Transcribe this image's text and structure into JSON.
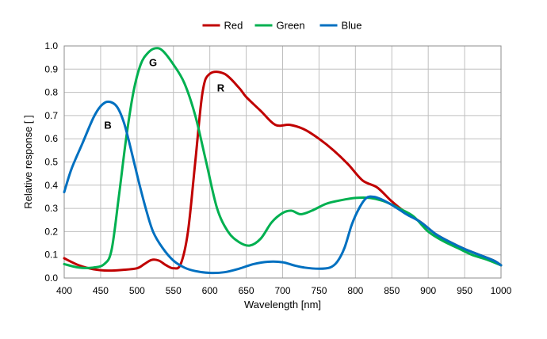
{
  "chart_data": {
    "type": "line",
    "title": "",
    "xlabel": "Wavelength [nm]",
    "ylabel": "Relative response [ ]",
    "xlim": [
      400,
      1000
    ],
    "ylim": [
      0,
      1.0
    ],
    "x_ticks": [
      400,
      450,
      500,
      550,
      600,
      650,
      700,
      750,
      800,
      850,
      900,
      950,
      1000
    ],
    "y_ticks": [
      0.0,
      0.1,
      0.2,
      0.3,
      0.4,
      0.5,
      0.6,
      0.7,
      0.8,
      0.9,
      1.0
    ],
    "x_tick_labels": [
      "400",
      "450",
      "500",
      "550",
      "600",
      "650",
      "700",
      "750",
      "800",
      "850",
      "900",
      "950",
      "1000"
    ],
    "y_tick_labels": [
      "0.0",
      "0.1",
      "0.2",
      "0.3",
      "0.4",
      "0.5",
      "0.6",
      "0.7",
      "0.8",
      "0.9",
      "1.0"
    ],
    "grid": true,
    "legend_position": "top-center",
    "series": [
      {
        "name": "Red",
        "color": "#c00000",
        "points": [
          [
            400,
            0.085
          ],
          [
            420,
            0.055
          ],
          [
            440,
            0.038
          ],
          [
            460,
            0.032
          ],
          [
            480,
            0.035
          ],
          [
            500,
            0.042
          ],
          [
            510,
            0.06
          ],
          [
            520,
            0.078
          ],
          [
            530,
            0.075
          ],
          [
            540,
            0.055
          ],
          [
            550,
            0.042
          ],
          [
            560,
            0.06
          ],
          [
            570,
            0.2
          ],
          [
            580,
            0.5
          ],
          [
            590,
            0.8
          ],
          [
            600,
            0.88
          ],
          [
            620,
            0.88
          ],
          [
            640,
            0.82
          ],
          [
            650,
            0.78
          ],
          [
            670,
            0.72
          ],
          [
            690,
            0.66
          ],
          [
            710,
            0.66
          ],
          [
            730,
            0.64
          ],
          [
            750,
            0.6
          ],
          [
            770,
            0.55
          ],
          [
            790,
            0.49
          ],
          [
            810,
            0.42
          ],
          [
            830,
            0.39
          ],
          [
            850,
            0.33
          ],
          [
            870,
            0.28
          ],
          [
            890,
            0.24
          ],
          [
            910,
            0.19
          ],
          [
            930,
            0.155
          ],
          [
            950,
            0.125
          ],
          [
            970,
            0.1
          ],
          [
            990,
            0.075
          ],
          [
            1000,
            0.055
          ]
        ]
      },
      {
        "name": "Green",
        "color": "#00b050",
        "points": [
          [
            400,
            0.06
          ],
          [
            420,
            0.045
          ],
          [
            440,
            0.045
          ],
          [
            455,
            0.06
          ],
          [
            465,
            0.12
          ],
          [
            475,
            0.35
          ],
          [
            485,
            0.6
          ],
          [
            495,
            0.8
          ],
          [
            505,
            0.92
          ],
          [
            515,
            0.97
          ],
          [
            525,
            0.99
          ],
          [
            535,
            0.98
          ],
          [
            550,
            0.92
          ],
          [
            565,
            0.84
          ],
          [
            580,
            0.7
          ],
          [
            595,
            0.5
          ],
          [
            610,
            0.3
          ],
          [
            625,
            0.2
          ],
          [
            640,
            0.155
          ],
          [
            655,
            0.14
          ],
          [
            670,
            0.17
          ],
          [
            685,
            0.24
          ],
          [
            700,
            0.28
          ],
          [
            712,
            0.29
          ],
          [
            725,
            0.275
          ],
          [
            740,
            0.29
          ],
          [
            760,
            0.32
          ],
          [
            780,
            0.335
          ],
          [
            800,
            0.345
          ],
          [
            820,
            0.345
          ],
          [
            840,
            0.33
          ],
          [
            860,
            0.3
          ],
          [
            880,
            0.265
          ],
          [
            900,
            0.2
          ],
          [
            920,
            0.16
          ],
          [
            940,
            0.13
          ],
          [
            960,
            0.1
          ],
          [
            980,
            0.08
          ],
          [
            1000,
            0.055
          ]
        ]
      },
      {
        "name": "Blue",
        "color": "#0070c0",
        "points": [
          [
            400,
            0.37
          ],
          [
            410,
            0.47
          ],
          [
            425,
            0.58
          ],
          [
            440,
            0.69
          ],
          [
            450,
            0.74
          ],
          [
            460,
            0.76
          ],
          [
            472,
            0.74
          ],
          [
            482,
            0.67
          ],
          [
            492,
            0.55
          ],
          [
            502,
            0.42
          ],
          [
            512,
            0.3
          ],
          [
            522,
            0.2
          ],
          [
            535,
            0.13
          ],
          [
            550,
            0.075
          ],
          [
            565,
            0.045
          ],
          [
            580,
            0.03
          ],
          [
            600,
            0.022
          ],
          [
            620,
            0.025
          ],
          [
            640,
            0.04
          ],
          [
            660,
            0.06
          ],
          [
            680,
            0.07
          ],
          [
            700,
            0.068
          ],
          [
            715,
            0.055
          ],
          [
            730,
            0.045
          ],
          [
            750,
            0.04
          ],
          [
            765,
            0.045
          ],
          [
            775,
            0.07
          ],
          [
            785,
            0.13
          ],
          [
            795,
            0.23
          ],
          [
            805,
            0.3
          ],
          [
            815,
            0.345
          ],
          [
            825,
            0.35
          ],
          [
            835,
            0.34
          ],
          [
            850,
            0.315
          ],
          [
            870,
            0.275
          ],
          [
            890,
            0.24
          ],
          [
            910,
            0.19
          ],
          [
            930,
            0.155
          ],
          [
            950,
            0.125
          ],
          [
            970,
            0.1
          ],
          [
            990,
            0.075
          ],
          [
            1000,
            0.055
          ]
        ]
      }
    ],
    "annotations": [
      {
        "text": "B",
        "x": 460,
        "y": 0.66
      },
      {
        "text": "G",
        "x": 522,
        "y": 0.93
      },
      {
        "text": "R",
        "x": 615,
        "y": 0.82
      }
    ]
  }
}
